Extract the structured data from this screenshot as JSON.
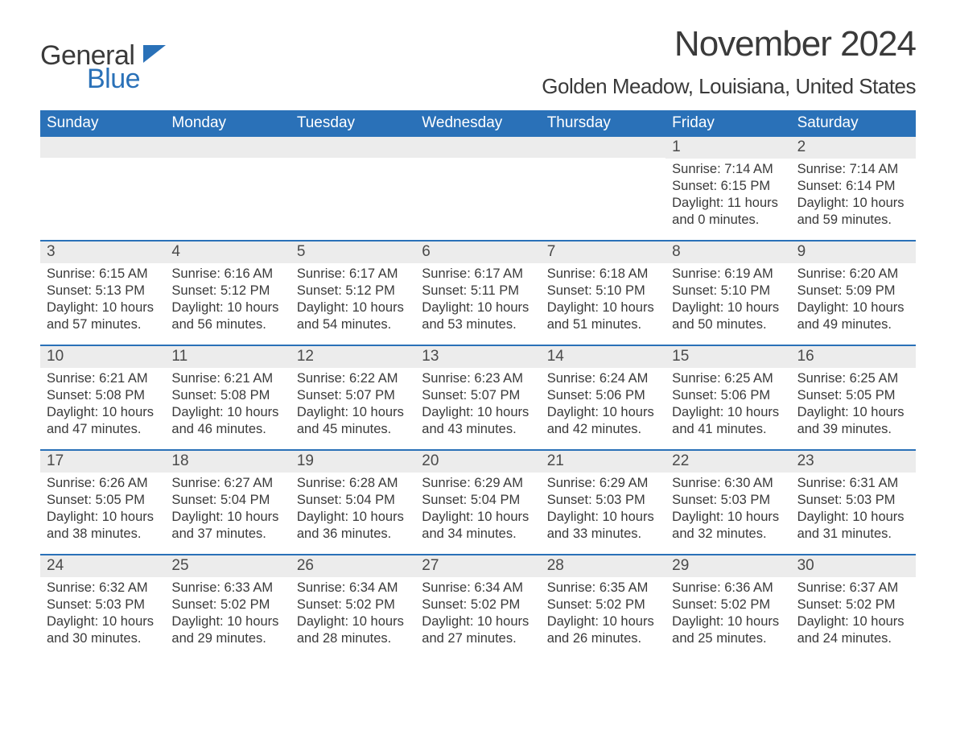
{
  "logo": {
    "main": "General",
    "sub": "Blue",
    "icon_color": "#2a71b8"
  },
  "title": "November 2024",
  "location": "Golden Meadow, Louisiana, United States",
  "colors": {
    "header_bg": "#2a71b8",
    "header_text": "#ffffff",
    "daynum_bg": "#ececec",
    "text": "#3a3a3a",
    "rule": "#2a71b8",
    "page_bg": "#ffffff"
  },
  "typography": {
    "month_title_size_pt": 33,
    "location_size_pt": 19,
    "dayheader_size_pt": 14,
    "daynum_size_pt": 14,
    "body_size_pt": 12
  },
  "layout": {
    "columns": 7,
    "rows": 5,
    "leading_blanks": 5
  },
  "day_headers": [
    "Sunday",
    "Monday",
    "Tuesday",
    "Wednesday",
    "Thursday",
    "Friday",
    "Saturday"
  ],
  "days": [
    {
      "n": 1,
      "sunrise": "7:14 AM",
      "sunset": "6:15 PM",
      "daylight": "11 hours and 0 minutes."
    },
    {
      "n": 2,
      "sunrise": "7:14 AM",
      "sunset": "6:14 PM",
      "daylight": "10 hours and 59 minutes."
    },
    {
      "n": 3,
      "sunrise": "6:15 AM",
      "sunset": "5:13 PM",
      "daylight": "10 hours and 57 minutes."
    },
    {
      "n": 4,
      "sunrise": "6:16 AM",
      "sunset": "5:12 PM",
      "daylight": "10 hours and 56 minutes."
    },
    {
      "n": 5,
      "sunrise": "6:17 AM",
      "sunset": "5:12 PM",
      "daylight": "10 hours and 54 minutes."
    },
    {
      "n": 6,
      "sunrise": "6:17 AM",
      "sunset": "5:11 PM",
      "daylight": "10 hours and 53 minutes."
    },
    {
      "n": 7,
      "sunrise": "6:18 AM",
      "sunset": "5:10 PM",
      "daylight": "10 hours and 51 minutes."
    },
    {
      "n": 8,
      "sunrise": "6:19 AM",
      "sunset": "5:10 PM",
      "daylight": "10 hours and 50 minutes."
    },
    {
      "n": 9,
      "sunrise": "6:20 AM",
      "sunset": "5:09 PM",
      "daylight": "10 hours and 49 minutes."
    },
    {
      "n": 10,
      "sunrise": "6:21 AM",
      "sunset": "5:08 PM",
      "daylight": "10 hours and 47 minutes."
    },
    {
      "n": 11,
      "sunrise": "6:21 AM",
      "sunset": "5:08 PM",
      "daylight": "10 hours and 46 minutes."
    },
    {
      "n": 12,
      "sunrise": "6:22 AM",
      "sunset": "5:07 PM",
      "daylight": "10 hours and 45 minutes."
    },
    {
      "n": 13,
      "sunrise": "6:23 AM",
      "sunset": "5:07 PM",
      "daylight": "10 hours and 43 minutes."
    },
    {
      "n": 14,
      "sunrise": "6:24 AM",
      "sunset": "5:06 PM",
      "daylight": "10 hours and 42 minutes."
    },
    {
      "n": 15,
      "sunrise": "6:25 AM",
      "sunset": "5:06 PM",
      "daylight": "10 hours and 41 minutes."
    },
    {
      "n": 16,
      "sunrise": "6:25 AM",
      "sunset": "5:05 PM",
      "daylight": "10 hours and 39 minutes."
    },
    {
      "n": 17,
      "sunrise": "6:26 AM",
      "sunset": "5:05 PM",
      "daylight": "10 hours and 38 minutes."
    },
    {
      "n": 18,
      "sunrise": "6:27 AM",
      "sunset": "5:04 PM",
      "daylight": "10 hours and 37 minutes."
    },
    {
      "n": 19,
      "sunrise": "6:28 AM",
      "sunset": "5:04 PM",
      "daylight": "10 hours and 36 minutes."
    },
    {
      "n": 20,
      "sunrise": "6:29 AM",
      "sunset": "5:04 PM",
      "daylight": "10 hours and 34 minutes."
    },
    {
      "n": 21,
      "sunrise": "6:29 AM",
      "sunset": "5:03 PM",
      "daylight": "10 hours and 33 minutes."
    },
    {
      "n": 22,
      "sunrise": "6:30 AM",
      "sunset": "5:03 PM",
      "daylight": "10 hours and 32 minutes."
    },
    {
      "n": 23,
      "sunrise": "6:31 AM",
      "sunset": "5:03 PM",
      "daylight": "10 hours and 31 minutes."
    },
    {
      "n": 24,
      "sunrise": "6:32 AM",
      "sunset": "5:03 PM",
      "daylight": "10 hours and 30 minutes."
    },
    {
      "n": 25,
      "sunrise": "6:33 AM",
      "sunset": "5:02 PM",
      "daylight": "10 hours and 29 minutes."
    },
    {
      "n": 26,
      "sunrise": "6:34 AM",
      "sunset": "5:02 PM",
      "daylight": "10 hours and 28 minutes."
    },
    {
      "n": 27,
      "sunrise": "6:34 AM",
      "sunset": "5:02 PM",
      "daylight": "10 hours and 27 minutes."
    },
    {
      "n": 28,
      "sunrise": "6:35 AM",
      "sunset": "5:02 PM",
      "daylight": "10 hours and 26 minutes."
    },
    {
      "n": 29,
      "sunrise": "6:36 AM",
      "sunset": "5:02 PM",
      "daylight": "10 hours and 25 minutes."
    },
    {
      "n": 30,
      "sunrise": "6:37 AM",
      "sunset": "5:02 PM",
      "daylight": "10 hours and 24 minutes."
    }
  ],
  "labels": {
    "sunrise": "Sunrise:",
    "sunset": "Sunset:",
    "daylight": "Daylight:"
  }
}
